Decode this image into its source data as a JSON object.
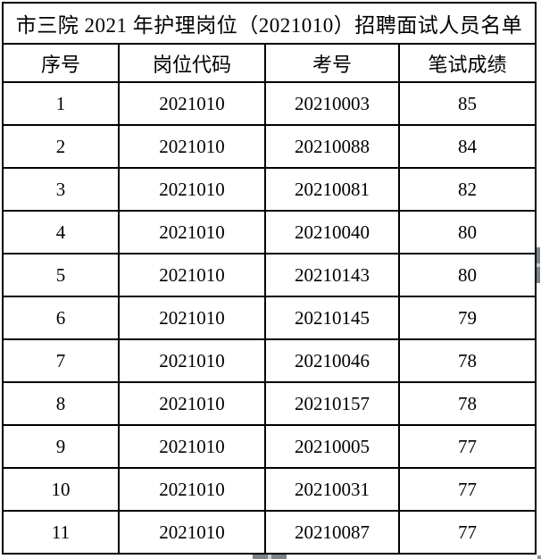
{
  "title": "市三院 2021 年护理岗位（2021010）招聘面试人员名单",
  "table": {
    "headers": [
      "序号",
      "岗位代码",
      "考号",
      "笔试成绩"
    ],
    "rows": [
      [
        "1",
        "2021010",
        "20210003",
        "85"
      ],
      [
        "2",
        "2021010",
        "20210088",
        "84"
      ],
      [
        "3",
        "2021010",
        "20210081",
        "82"
      ],
      [
        "4",
        "2021010",
        "20210040",
        "80"
      ],
      [
        "5",
        "2021010",
        "20210143",
        "80"
      ],
      [
        "6",
        "2021010",
        "20210145",
        "79"
      ],
      [
        "7",
        "2021010",
        "20210046",
        "78"
      ],
      [
        "8",
        "2021010",
        "20210157",
        "78"
      ],
      [
        "9",
        "2021010",
        "20210005",
        "77"
      ],
      [
        "10",
        "2021010",
        "20210031",
        "77"
      ],
      [
        "11",
        "2021010",
        "20210087",
        "77"
      ]
    ]
  },
  "colors": {
    "border": "#000000",
    "text": "#000000",
    "background": "#ffffff",
    "scrollbar_thumb": "#7b848b"
  }
}
